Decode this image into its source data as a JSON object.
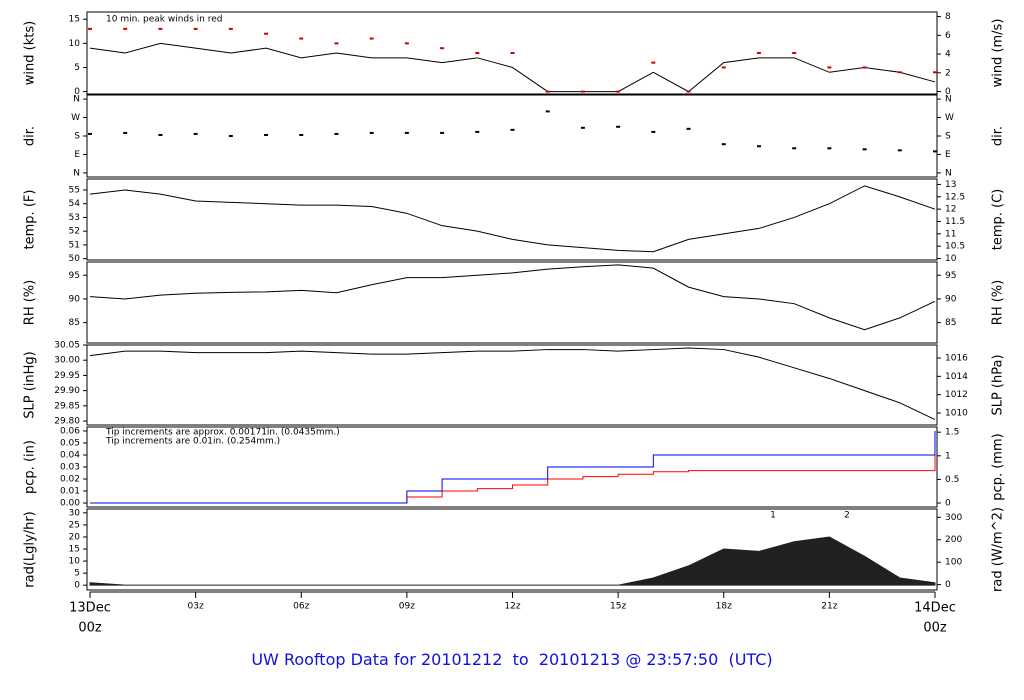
{
  "title": "UW Rooftop Data for 20101212  to  20101213 @ 23:57:50  (UTC)",
  "chart_data": [
    {
      "type": "line",
      "ylabel": "wind (kts)",
      "y2label": "wind (m/s)",
      "xlim": [
        0,
        24
      ],
      "ylim": [
        -0.5,
        16.5
      ],
      "yticks": [
        0,
        5,
        10,
        15
      ],
      "y2lim": [
        -0.26,
        8.49
      ],
      "y2ticks": [
        0,
        2,
        4,
        6,
        8
      ],
      "annotation": "10 min. peak winds in red",
      "annotation_color": "#d00000",
      "x": [
        0,
        1,
        2,
        3,
        4,
        5,
        6,
        7,
        8,
        9,
        10,
        11,
        12,
        13,
        14,
        15,
        16,
        17,
        18,
        19,
        20,
        21,
        22,
        23,
        24
      ],
      "series": [
        {
          "name": "wind",
          "color": "#000000",
          "mode": "lines",
          "values": [
            9,
            8,
            10,
            9,
            8,
            9,
            7,
            8,
            7,
            7,
            6,
            7,
            5,
            0,
            0,
            0,
            4,
            0,
            6,
            7,
            7,
            4,
            5,
            4,
            2
          ]
        },
        {
          "name": "peak",
          "color": "#d00000",
          "mode": "markers",
          "values": [
            13,
            13,
            13,
            13,
            13,
            12,
            11,
            10,
            11,
            10,
            9,
            8,
            8,
            0,
            0,
            0,
            6,
            0,
            5,
            8,
            8,
            5,
            5,
            4,
            4
          ]
        }
      ]
    },
    {
      "type": "scatter",
      "ylabel": "dir.",
      "y2label": "dir.",
      "xlim": [
        0,
        24
      ],
      "ylim": [
        -20,
        380
      ],
      "yticks": [
        {
          "value": 0,
          "label": "N"
        },
        {
          "value": 90,
          "label": "E"
        },
        {
          "value": 180,
          "label": "S"
        },
        {
          "value": 270,
          "label": "W"
        },
        {
          "value": 360,
          "label": "N"
        }
      ],
      "y2lim": [
        -20,
        380
      ],
      "y2ticks": [
        {
          "value": 0,
          "label": "N"
        },
        {
          "value": 90,
          "label": "E"
        },
        {
          "value": 180,
          "label": "S"
        },
        {
          "value": 270,
          "label": "W"
        },
        {
          "value": 360,
          "label": "N"
        }
      ],
      "x": [
        0,
        1,
        2,
        3,
        4,
        5,
        6,
        7,
        8,
        9,
        10,
        11,
        12,
        13,
        14,
        15,
        16,
        17,
        18,
        19,
        20,
        21,
        22,
        23,
        24
      ],
      "series": [
        {
          "name": "dir",
          "color": "#000000",
          "values": [
            190,
            195,
            185,
            190,
            180,
            185,
            185,
            190,
            195,
            195,
            195,
            200,
            210,
            300,
            220,
            225,
            200,
            215,
            140,
            130,
            120,
            120,
            115,
            110,
            105
          ]
        }
      ]
    },
    {
      "type": "line",
      "ylabel": "temp. (F)",
      "y2label": "temp. (C)",
      "xlim": [
        0,
        24
      ],
      "ylim": [
        49.9,
        55.8
      ],
      "yticks": [
        50,
        51,
        52,
        53,
        54,
        55
      ],
      "y2lim": [
        9.94,
        13.22
      ],
      "y2ticks": [
        10,
        10.5,
        11,
        11.5,
        12,
        12.5,
        13
      ],
      "x": [
        0,
        1,
        2,
        3,
        4,
        5,
        6,
        7,
        8,
        9,
        10,
        11,
        12,
        13,
        14,
        15,
        16,
        17,
        18,
        19,
        20,
        21,
        22,
        23,
        24
      ],
      "series": [
        {
          "name": "temp",
          "color": "#000000",
          "values": [
            54.7,
            55.0,
            54.7,
            54.2,
            54.1,
            54.0,
            53.9,
            53.9,
            53.8,
            53.3,
            52.4,
            52.0,
            51.4,
            51.0,
            50.8,
            50.6,
            50.5,
            51.4,
            51.8,
            52.2,
            53.0,
            54.0,
            55.3,
            54.5,
            53.6
          ]
        }
      ]
    },
    {
      "type": "line",
      "ylabel": "RH (%)",
      "y2label": "RH (%)",
      "xlim": [
        0,
        24
      ],
      "ylim": [
        80.7,
        97.8
      ],
      "yticks": [
        85,
        90,
        95
      ],
      "y2lim": [
        80.7,
        97.8
      ],
      "y2ticks": [
        85,
        90,
        95
      ],
      "x": [
        0,
        1,
        2,
        3,
        4,
        5,
        6,
        7,
        8,
        9,
        10,
        11,
        12,
        13,
        14,
        15,
        16,
        17,
        18,
        19,
        20,
        21,
        22,
        23,
        24
      ],
      "series": [
        {
          "name": "RH",
          "color": "#000000",
          "values": [
            90.5,
            90,
            90.8,
            91.2,
            91.4,
            91.5,
            91.8,
            91.3,
            93,
            94.5,
            94.5,
            95,
            95.5,
            96.3,
            96.8,
            97.2,
            96.5,
            92.5,
            90.5,
            90,
            89,
            86,
            83.5,
            86,
            89.5
          ]
        }
      ]
    },
    {
      "type": "line",
      "ylabel": "SLP (inHg)",
      "y2label": "SLP (hPa)",
      "xlim": [
        0,
        24
      ],
      "ylim": [
        29.787,
        30.05
      ],
      "yticks": [
        {
          "value": 29.8,
          "label": "29.80"
        },
        {
          "value": 29.85,
          "label": "29.85"
        },
        {
          "value": 29.9,
          "label": "29.90"
        },
        {
          "value": 29.95,
          "label": "29.95"
        },
        {
          "value": 30,
          "label": "30.00"
        },
        {
          "value": 30.05,
          "label": "30.05"
        }
      ],
      "y2lim": [
        1008.69,
        1017.42
      ],
      "y2ticks": [
        1010,
        1012,
        1014,
        1016
      ],
      "x": [
        0,
        1,
        2,
        3,
        4,
        5,
        6,
        7,
        8,
        9,
        10,
        11,
        12,
        13,
        14,
        15,
        16,
        17,
        18,
        19,
        20,
        21,
        22,
        23,
        24
      ],
      "series": [
        {
          "name": "SLP",
          "color": "#000000",
          "values": [
            30.015,
            30.03,
            30.03,
            30.025,
            30.025,
            30.025,
            30.03,
            30.025,
            30.02,
            30.02,
            30.025,
            30.03,
            30.03,
            30.035,
            30.035,
            30.03,
            30.035,
            30.04,
            30.035,
            30.01,
            29.975,
            29.94,
            29.9,
            29.86,
            29.805
          ]
        }
      ]
    },
    {
      "type": "line",
      "drawstyle": "steps",
      "ylabel": "pcp. (in)",
      "y2label": "pcp. (mm)",
      "xlim": [
        0,
        24
      ],
      "ylim": [
        -0.0033,
        0.0633
      ],
      "yticks": [
        {
          "value": 0,
          "label": "0.00"
        },
        0.01,
        0.02,
        0.03,
        0.04,
        0.05,
        0.06
      ],
      "y2lim": [
        -0.085,
        1.61
      ],
      "y2ticks": [
        0,
        0.5,
        1,
        1.5
      ],
      "annotations": [
        {
          "text": "Tip increments are approx. 0.00171in. (0.0435mm.)",
          "color": "#d00000"
        },
        {
          "text": "Tip increments are 0.01in. (0.254mm.)",
          "color": "#0000c0"
        }
      ],
      "x": [
        0,
        1,
        2,
        3,
        4,
        5,
        6,
        7,
        8,
        9,
        10,
        11,
        12,
        13,
        14,
        15,
        16,
        17,
        18,
        19,
        20,
        21,
        22,
        23,
        24
      ],
      "series": [
        {
          "name": "approx",
          "color": "#ff0000",
          "values": [
            0,
            0,
            0,
            0,
            0,
            0,
            0,
            0,
            0,
            0.005,
            0.01,
            0.012,
            0.015,
            0.02,
            0.022,
            0.024,
            0.026,
            0.027,
            0.027,
            0.027,
            0.027,
            0.027,
            0.027,
            0.027,
            0.045
          ]
        },
        {
          "name": "tip",
          "color": "#0000ff",
          "values": [
            0,
            0,
            0,
            0,
            0,
            0,
            0,
            0,
            0,
            0.01,
            0.02,
            0.02,
            0.02,
            0.03,
            0.03,
            0.03,
            0.04,
            0.04,
            0.04,
            0.04,
            0.04,
            0.04,
            0.04,
            0.04,
            0.06
          ]
        }
      ]
    },
    {
      "type": "area",
      "ylabel": "rad(Lgly/hr)",
      "y2label": "rad (W/m^2)",
      "xlim": [
        0,
        24
      ],
      "ylim": [
        -2,
        31.6
      ],
      "yticks": [
        0,
        5,
        10,
        15,
        20,
        25,
        30
      ],
      "y2lim": [
        -24,
        337
      ],
      "y2ticks": [
        0,
        100,
        200,
        300
      ],
      "markers": [
        {
          "text": "1",
          "x": 19.4
        },
        {
          "text": "2",
          "x": 21.5
        }
      ],
      "marker_color": "#8030c0",
      "xticks": [
        {
          "value": 0,
          "label": "00z"
        },
        {
          "value": 3,
          "label": "03z"
        },
        {
          "value": 6,
          "label": "06z"
        },
        {
          "value": 9,
          "label": "09z"
        },
        {
          "value": 12,
          "label": "12z"
        },
        {
          "value": 15,
          "label": "15z"
        },
        {
          "value": 18,
          "label": "18z"
        },
        {
          "value": 21,
          "label": "21z"
        },
        {
          "value": 24,
          "label": "00z"
        }
      ],
      "xdate_labels": [
        {
          "value": 0,
          "label": "13Dec"
        },
        {
          "value": 24,
          "label": "14Dec"
        }
      ],
      "x": [
        0,
        1,
        2,
        3,
        4,
        5,
        6,
        7,
        8,
        9,
        10,
        11,
        12,
        13,
        14,
        15,
        16,
        17,
        18,
        19,
        20,
        21,
        22,
        23,
        24
      ],
      "series": [
        {
          "name": "rad",
          "color": "#202020",
          "values": [
            1,
            0,
            0,
            0,
            0,
            0,
            0,
            0,
            0,
            0,
            0,
            0,
            0,
            0,
            0,
            0,
            3,
            8,
            15,
            14,
            18,
            20,
            12,
            3,
            1
          ]
        }
      ]
    }
  ]
}
